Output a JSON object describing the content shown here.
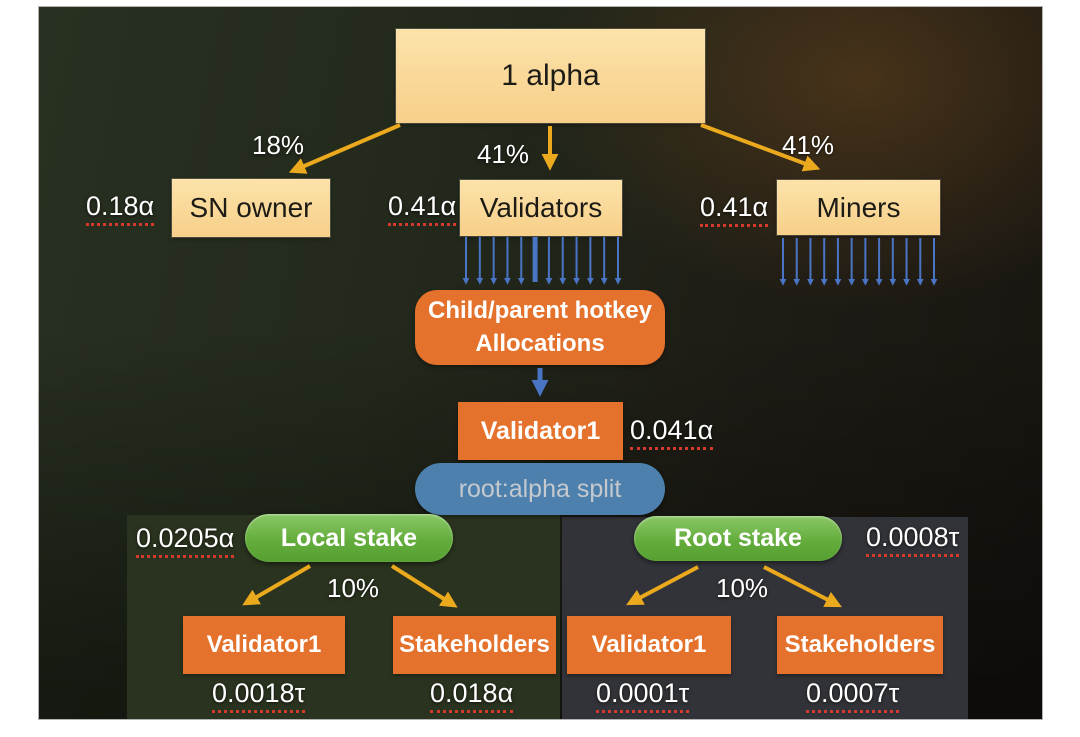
{
  "diagram": {
    "root": {
      "label": "1 alpha"
    },
    "branches": [
      {
        "label": "SN owner",
        "amount": "0.18α",
        "percent": "18%"
      },
      {
        "label": "Validators",
        "amount": "0.41α",
        "percent": "41%"
      },
      {
        "label": "Miners",
        "amount": "0.41α",
        "percent": "41%"
      }
    ],
    "hotkey": {
      "line1": "Child/parent hotkey",
      "line2": "Allocations"
    },
    "validator1": {
      "label": "Validator1",
      "amount": "0.041α"
    },
    "split": {
      "label": "root:alpha split"
    },
    "panels": [
      {
        "title": "Local stake",
        "amount": "0.0205α",
        "percent": "10%",
        "children": [
          {
            "label": "Validator1",
            "amount": "0.0018τ"
          },
          {
            "label": "Stakeholders",
            "amount": "0.018α"
          }
        ]
      },
      {
        "title": "Root stake",
        "amount": "0.0008τ",
        "percent": "10%",
        "children": [
          {
            "label": "Validator1",
            "amount": "0.0001τ"
          },
          {
            "label": "Stakeholders",
            "amount": "0.0007τ"
          }
        ]
      }
    ],
    "fans": {
      "validators_count": 12,
      "miners_count": 12
    },
    "colors": {
      "tan_box": "#f8d692",
      "orange": "#e5722c",
      "gold_arrow": "#ebaa1e",
      "blue_arrow": "#4a74c4",
      "split_blue": "#4d80ac",
      "green_pill": "#64ad3d",
      "underline_red": "#d53a2c",
      "panel_local_bg": "#2a331f",
      "panel_root_bg": "#323338"
    }
  }
}
